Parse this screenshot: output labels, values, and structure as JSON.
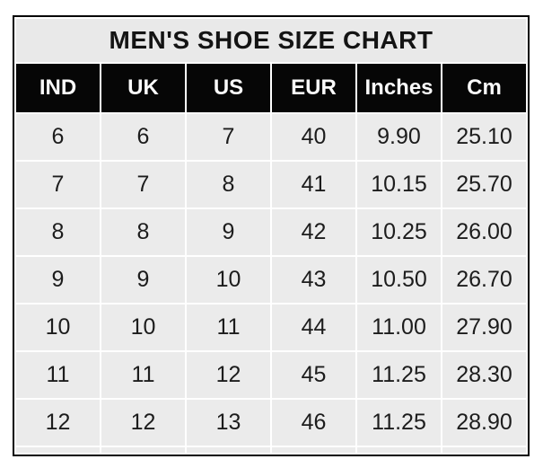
{
  "chart_data": {
    "type": "table",
    "title": "MEN'S SHOE SIZE CHART",
    "columns": [
      "IND",
      "UK",
      "US",
      "EUR",
      "Inches",
      "Cm"
    ],
    "rows": [
      [
        "6",
        "6",
        "7",
        "40",
        "9.90",
        "25.10"
      ],
      [
        "7",
        "7",
        "8",
        "41",
        "10.15",
        "25.70"
      ],
      [
        "8",
        "8",
        "9",
        "42",
        "10.25",
        "26.00"
      ],
      [
        "9",
        "9",
        "10",
        "43",
        "10.50",
        "26.70"
      ],
      [
        "10",
        "10",
        "11",
        "44",
        "11.00",
        "27.90"
      ],
      [
        "11",
        "11",
        "12",
        "45",
        "11.25",
        "28.30"
      ],
      [
        "12",
        "12",
        "13",
        "46",
        "11.25",
        "28.90"
      ]
    ],
    "layout": {
      "grid": "white 2px separators between cells",
      "legend_position": "none"
    }
  },
  "colors": {
    "page_bg": "#ffffff",
    "title_bg": "#e9e9e9",
    "title_text": "#141414",
    "header_bg": "#060606",
    "header_text": "#fafafa",
    "cell_bg": "#ebebeb",
    "cell_text": "#1c1c1c",
    "table_border": "#000000"
  }
}
